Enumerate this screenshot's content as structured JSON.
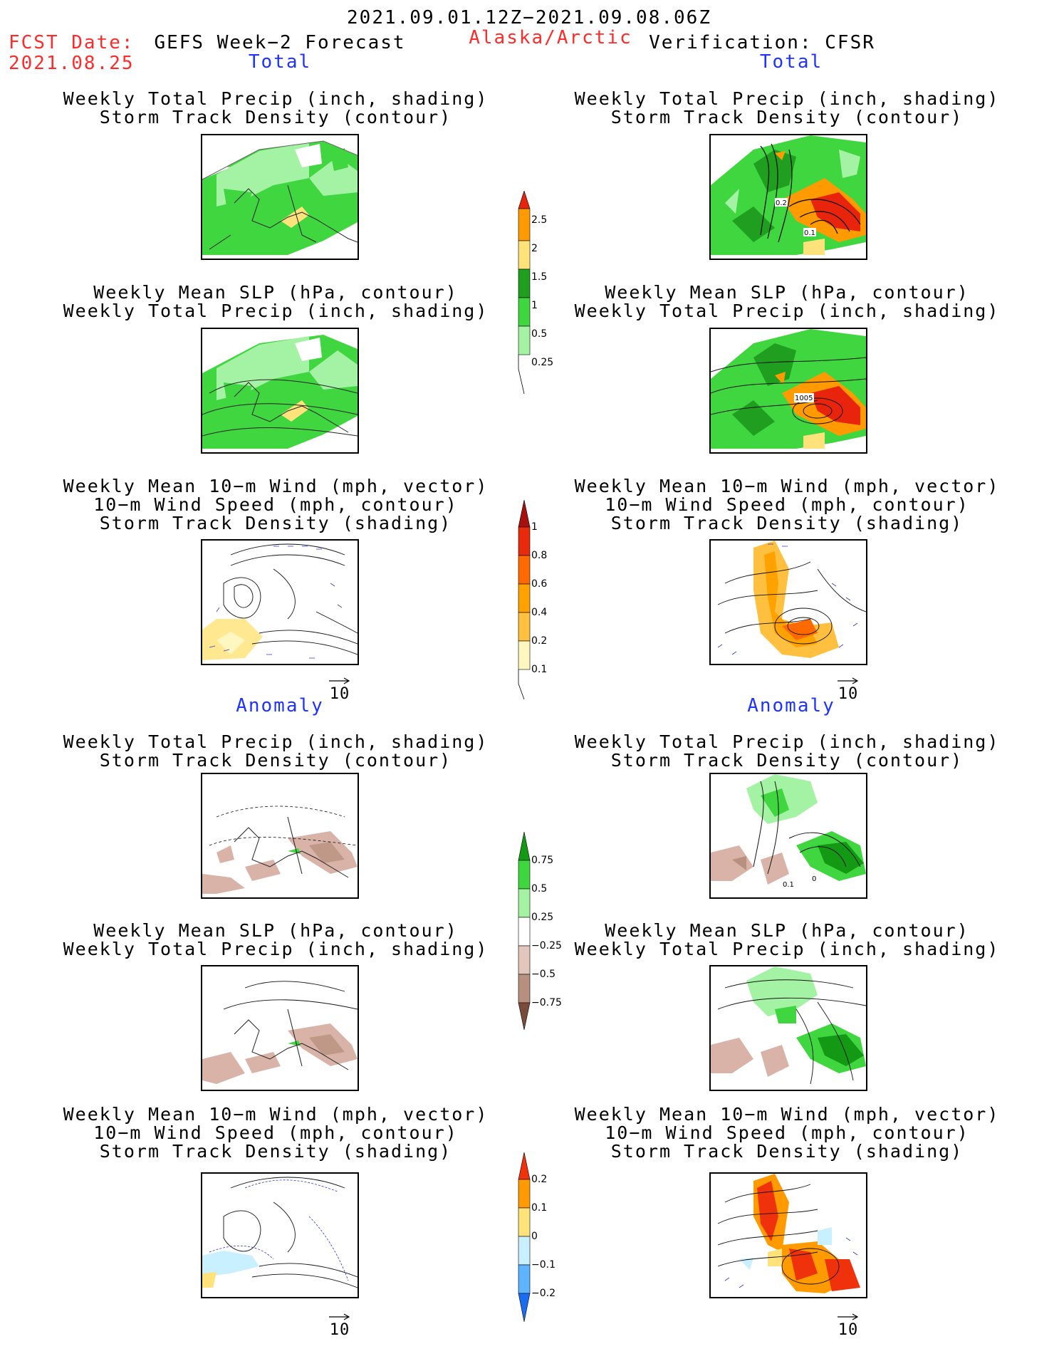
{
  "header": {
    "period": "2021.09.01.12Z−2021.09.08.06Z",
    "fcst_label": "FCST Date:",
    "fcst_date": "2021.08.25",
    "model_title": "GEFS Week−2 Forecast",
    "region": "Alaska/Arctic",
    "verification": "Verification: CFSR"
  },
  "sections": {
    "total": "Total",
    "anomaly": "Anomaly"
  },
  "panel_titles": {
    "precip_track": [
      "Weekly Total Precip (inch, shading)",
      "Storm Track Density (contour)"
    ],
    "slp_precip": [
      "Weekly Mean SLP (hPa, contour)",
      "Weekly Total Precip (inch, shading)"
    ],
    "wind_track": [
      "Weekly Mean 10−m Wind (mph, vector)",
      "10−m Wind Speed (mph, contour)",
      "Storm Track Density (shading)"
    ]
  },
  "vector_key": "10",
  "contour_labels": {
    "precip_track_obs": [
      "0.2",
      "0.1"
    ],
    "slp_obs": "1005",
    "precip_track_anom_obs": [
      "0.1",
      "0"
    ]
  },
  "colorbars": {
    "precip_total": {
      "labels": [
        "2.5",
        "2",
        "1.5",
        "1",
        "0.5",
        "0.25"
      ],
      "colors": [
        "#e8240c",
        "#ff9a00",
        "#ffe37a",
        "#1f9e1f",
        "#3fd63f",
        "#a4f2a4"
      ]
    },
    "track_total": {
      "labels": [
        "1",
        "0.8",
        "0.6",
        "0.4",
        "0.2",
        "0.1"
      ],
      "colors": [
        "#a81010",
        "#e82b0c",
        "#ff6a00",
        "#ffa200",
        "#ffc040",
        "#ffe890",
        "#fff6c0"
      ]
    },
    "precip_anom": {
      "labels": [
        "0.75",
        "0.5",
        "0.25",
        "−0.25",
        "−0.5",
        "−0.75"
      ],
      "colors": [
        "#149914",
        "#3fd63f",
        "#a4f2a4",
        "#ffffff",
        "#e3c6bb",
        "#b89080",
        "#7a4a3a"
      ]
    },
    "track_anom": {
      "labels": [
        "0.2",
        "0.1",
        "0",
        "−0.1",
        "−0.2"
      ],
      "colors": [
        "#f0320c",
        "#ff9a00",
        "#ffe37a",
        "#c8f0ff",
        "#5eb4ff",
        "#1a6cf0"
      ]
    }
  },
  "colors": {
    "header_red": "#ff2a2a",
    "section_blue": "#1f33ff",
    "precip_green": "#3fd63f",
    "precip_light": "#a4f2a4",
    "brown_anom": "#d9b3a8"
  }
}
